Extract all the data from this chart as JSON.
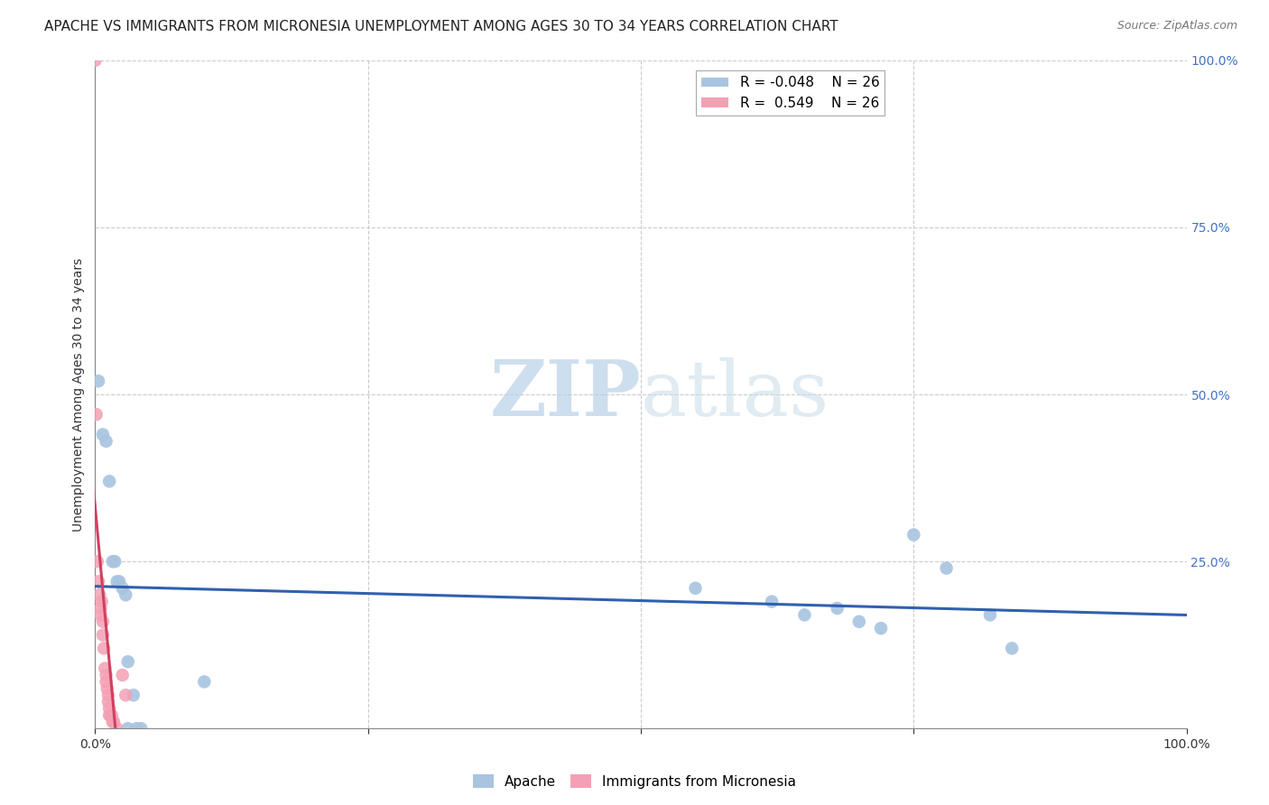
{
  "title": "APACHE VS IMMIGRANTS FROM MICRONESIA UNEMPLOYMENT AMONG AGES 30 TO 34 YEARS CORRELATION CHART",
  "source": "Source: ZipAtlas.com",
  "ylabel": "Unemployment Among Ages 30 to 34 years",
  "legend_apache": "Apache",
  "legend_micronesia": "Immigrants from Micronesia",
  "r_apache": "-0.048",
  "n_apache": "26",
  "r_micronesia": "0.549",
  "n_micronesia": "26",
  "apache_color": "#a8c4e0",
  "micronesia_color": "#f4a0b4",
  "trend_apache_color": "#3060b0",
  "trend_micronesia_color": "#d04060",
  "apache_pts": [
    [
      0.003,
      0.52
    ],
    [
      0.007,
      0.44
    ],
    [
      0.01,
      0.43
    ],
    [
      0.013,
      0.37
    ],
    [
      0.016,
      0.25
    ],
    [
      0.018,
      0.25
    ],
    [
      0.02,
      0.22
    ],
    [
      0.022,
      0.22
    ],
    [
      0.025,
      0.21
    ],
    [
      0.028,
      0.2
    ],
    [
      0.03,
      0.1
    ],
    [
      0.03,
      0.0
    ],
    [
      0.035,
      0.05
    ],
    [
      0.038,
      0.0
    ],
    [
      0.042,
      0.0
    ],
    [
      0.1,
      0.07
    ],
    [
      0.55,
      0.21
    ],
    [
      0.62,
      0.19
    ],
    [
      0.65,
      0.17
    ],
    [
      0.68,
      0.18
    ],
    [
      0.7,
      0.16
    ],
    [
      0.72,
      0.15
    ],
    [
      0.75,
      0.29
    ],
    [
      0.78,
      0.24
    ],
    [
      0.82,
      0.17
    ],
    [
      0.84,
      0.12
    ]
  ],
  "micronesia_pts": [
    [
      0.0,
      1.0
    ],
    [
      0.001,
      0.47
    ],
    [
      0.002,
      0.25
    ],
    [
      0.003,
      0.22
    ],
    [
      0.004,
      0.2
    ],
    [
      0.005,
      0.18
    ],
    [
      0.005,
      0.17
    ],
    [
      0.006,
      0.19
    ],
    [
      0.007,
      0.16
    ],
    [
      0.007,
      0.14
    ],
    [
      0.008,
      0.12
    ],
    [
      0.009,
      0.09
    ],
    [
      0.01,
      0.08
    ],
    [
      0.01,
      0.07
    ],
    [
      0.011,
      0.06
    ],
    [
      0.012,
      0.05
    ],
    [
      0.012,
      0.04
    ],
    [
      0.013,
      0.03
    ],
    [
      0.013,
      0.02
    ],
    [
      0.014,
      0.02
    ],
    [
      0.015,
      0.02
    ],
    [
      0.016,
      0.01
    ],
    [
      0.017,
      0.01
    ],
    [
      0.02,
      0.0
    ],
    [
      0.025,
      0.08
    ],
    [
      0.028,
      0.05
    ]
  ],
  "xlim": [
    0.0,
    1.0
  ],
  "ylim": [
    0.0,
    1.0
  ],
  "background_color": "#ffffff",
  "grid_color": "#cccccc",
  "watermark_zip": "ZIP",
  "watermark_atlas": "atlas",
  "title_fontsize": 11,
  "source_fontsize": 9,
  "marker_size": 110
}
